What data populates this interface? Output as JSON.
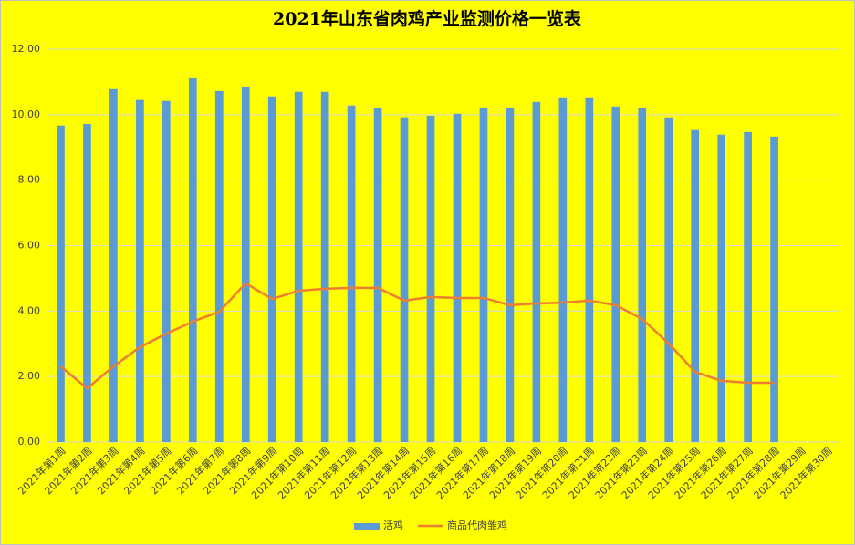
{
  "chart_data": {
    "type": "bar",
    "title": "2021年山东省肉鸡产业监测价格一览表",
    "categories": [
      "2021年第1周",
      "2021年第2周",
      "2021年第3周",
      "2021年第4周",
      "2021年第5周",
      "2021年第6周",
      "2021年第7周",
      "2021年第8周",
      "2021年第9周",
      "2021年第10周",
      "2021年第11周",
      "2021年第12周",
      "2021年第13周",
      "2021年第14周",
      "2021年第15周",
      "2021年第16周",
      "2021年第17周",
      "2021年第18周",
      "2021年第19周",
      "2021年第20周",
      "2021年第21周",
      "2021年第22周",
      "2021年第23周",
      "2021年第24周",
      "2021年第25周",
      "2021年第26周",
      "2021年第27周",
      "2021年第28周",
      "2021年第29周",
      "2021年第30周"
    ],
    "series": [
      {
        "name": "活鸡",
        "type": "bar",
        "color": "#5b9bd5",
        "values": [
          9.67,
          9.72,
          10.78,
          10.45,
          10.42,
          11.11,
          10.72,
          10.86,
          10.56,
          10.7,
          10.7,
          10.28,
          10.22,
          9.92,
          9.97,
          10.03,
          10.22,
          10.19,
          10.39,
          10.53,
          10.53,
          10.25,
          10.19,
          9.92,
          9.53,
          9.39,
          9.47,
          9.33,
          null,
          null
        ]
      },
      {
        "name": "商品代肉雏鸡",
        "type": "line",
        "color": "#ed7d31",
        "values": [
          2.31,
          1.64,
          2.31,
          2.9,
          3.31,
          3.68,
          3.98,
          4.85,
          4.37,
          4.62,
          4.68,
          4.71,
          4.71,
          4.32,
          4.43,
          4.4,
          4.4,
          4.18,
          4.23,
          4.26,
          4.32,
          4.18,
          3.76,
          3.01,
          2.14,
          1.87,
          1.81,
          1.81,
          null,
          null
        ]
      }
    ],
    "ylim": [
      0,
      12
    ],
    "yticks": [
      {
        "value": 0,
        "label": "0.00"
      },
      {
        "value": 2,
        "label": "2.00"
      },
      {
        "value": 4,
        "label": "4.00"
      },
      {
        "value": 6,
        "label": "6.00"
      },
      {
        "value": 8,
        "label": "8.00"
      },
      {
        "value": 10,
        "label": "10.00"
      },
      {
        "value": 12,
        "label": "12.00"
      }
    ],
    "grid": true,
    "legend": "bottom"
  }
}
